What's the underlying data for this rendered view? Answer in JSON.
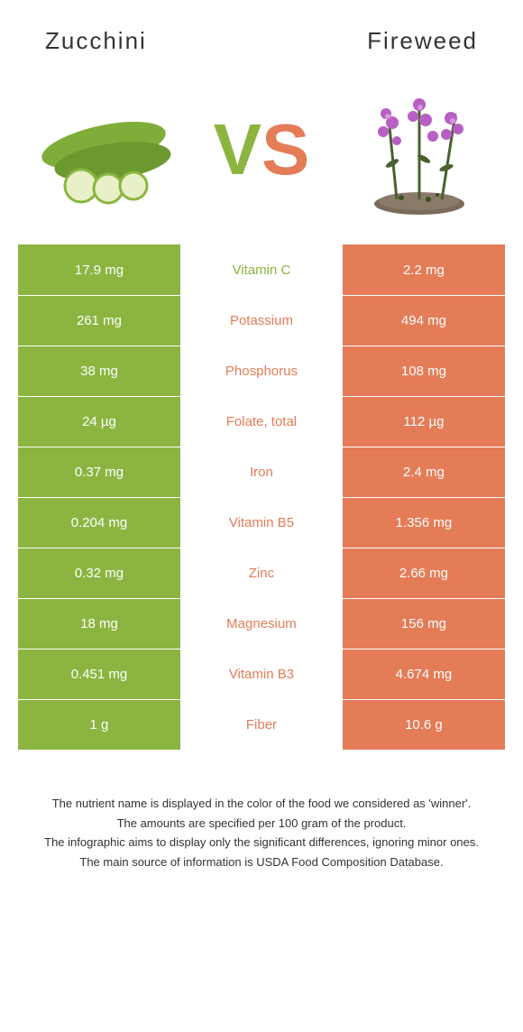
{
  "colors": {
    "left": "#8bb540",
    "right": "#e47c57",
    "mid_bg": "#ffffff"
  },
  "header": {
    "left_title": "Zucchini",
    "right_title": "Fireweed"
  },
  "vs": {
    "v": "V",
    "s": "S"
  },
  "rows": [
    {
      "left": "17.9 mg",
      "mid": "Vitamin C",
      "right": "2.2 mg",
      "winner": "left"
    },
    {
      "left": "261 mg",
      "mid": "Potassium",
      "right": "494 mg",
      "winner": "right"
    },
    {
      "left": "38 mg",
      "mid": "Phosphorus",
      "right": "108 mg",
      "winner": "right"
    },
    {
      "left": "24 µg",
      "mid": "Folate, total",
      "right": "112 µg",
      "winner": "right"
    },
    {
      "left": "0.37 mg",
      "mid": "Iron",
      "right": "2.4 mg",
      "winner": "right"
    },
    {
      "left": "0.204 mg",
      "mid": "Vitamin B5",
      "right": "1.356 mg",
      "winner": "right"
    },
    {
      "left": "0.32 mg",
      "mid": "Zinc",
      "right": "2.66 mg",
      "winner": "right"
    },
    {
      "left": "18 mg",
      "mid": "Magnesium",
      "right": "156 mg",
      "winner": "right"
    },
    {
      "left": "0.451 mg",
      "mid": "Vitamin B3",
      "right": "4.674 mg",
      "winner": "right"
    },
    {
      "left": "1 g",
      "mid": "Fiber",
      "right": "10.6 g",
      "winner": "right"
    }
  ],
  "footer": {
    "line1": "The nutrient name is displayed in the color of the food we considered as 'winner'.",
    "line2": "The amounts are specified per 100 gram of the product.",
    "line3": "The infographic aims to display only the significant differences, ignoring minor ones.",
    "line4": "The main source of information is USDA Food Composition Database."
  }
}
